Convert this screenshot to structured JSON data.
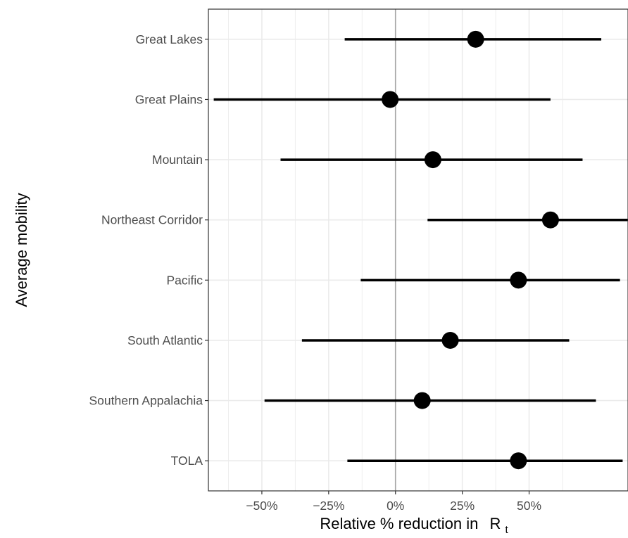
{
  "chart_data": {
    "type": "scatter",
    "subtype": "forest-plot",
    "xlabel": "Relative % reduction in",
    "xlabel_symbol": "R",
    "xlabel_subscript": "t",
    "ylabel": "Average mobility",
    "x_unit": "%",
    "xlim": [
      -70,
      87
    ],
    "x_ticks": [
      -50,
      -25,
      0,
      25,
      50
    ],
    "x_tick_labels": [
      "−50%",
      "−25%",
      "0%",
      "25%",
      "50%"
    ],
    "reference_line_x": 0,
    "grid": true,
    "categories": [
      "Great Lakes",
      "Great Plains",
      "Mountain",
      "Northeast Corridor",
      "Pacific",
      "South Atlantic",
      "Southern Appalachia",
      "TOLA"
    ],
    "estimates": [
      30,
      -2,
      14,
      58,
      46,
      20.5,
      10,
      46
    ],
    "lower": [
      -19,
      -68,
      -43,
      12,
      -13,
      -35,
      -49,
      -18
    ],
    "upper": [
      77,
      58,
      70,
      87,
      84,
      65,
      75,
      85
    ]
  },
  "colors": {
    "background": "#ffffff",
    "grid": "#ebebeb",
    "reference_line": "#a6a6a6",
    "marks": "#000000",
    "panel_border": "#333333",
    "tick_text": "#4d4d4d"
  }
}
